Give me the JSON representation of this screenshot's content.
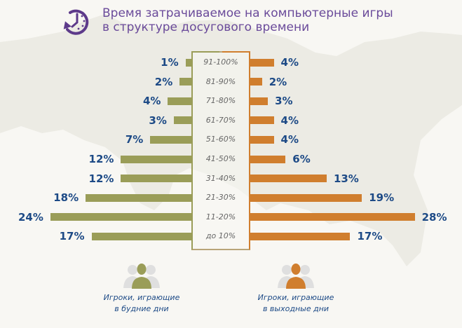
{
  "header": {
    "icon": "clock-rewind-icon",
    "title": "Время затрачиваемое на компьютерные игры\nв структуре досугового времени"
  },
  "colors": {
    "weekday": "#9a9d58",
    "weekend": "#d07e2e",
    "value_text": "#1d4a86",
    "title": "#6a4a9a"
  },
  "legend": {
    "weekday": {
      "icon": "user-group-icon",
      "label": "Игроки, играющие\nв будние дни"
    },
    "weekend": {
      "icon": "user-group-icon",
      "label": "Игроки, играющие\nв выходные дни"
    }
  },
  "chart_data": {
    "type": "bar",
    "orientation": "horizontal-butterfly",
    "title": "Время затрачиваемое на компьютерные игры в структуре досугового времени",
    "categories": [
      "91-100%",
      "81-90%",
      "71-80%",
      "61-70%",
      "51-60%",
      "41-50%",
      "31-40%",
      "21-30%",
      "11-20%",
      "до 10%"
    ],
    "series": [
      {
        "name": "Игроки, играющие в будние дни",
        "side": "left",
        "values": [
          1,
          2,
          4,
          3,
          7,
          12,
          12,
          18,
          24,
          17
        ]
      },
      {
        "name": "Игроки, играющие в выходные дни",
        "side": "right",
        "values": [
          4,
          2,
          3,
          4,
          4,
          6,
          13,
          19,
          28,
          17
        ]
      }
    ],
    "value_labels": {
      "left": [
        "1%",
        "2%",
        "4%",
        "3%",
        "7%",
        "12%",
        "12%",
        "18%",
        "24%",
        "17%"
      ],
      "right": [
        "4%",
        "2%",
        "3%",
        "4%",
        "4%",
        "6%",
        "13%",
        "19%",
        "28%",
        "17%"
      ]
    },
    "xlim": [
      0,
      28
    ],
    "grid": false,
    "legend_position": "bottom"
  }
}
